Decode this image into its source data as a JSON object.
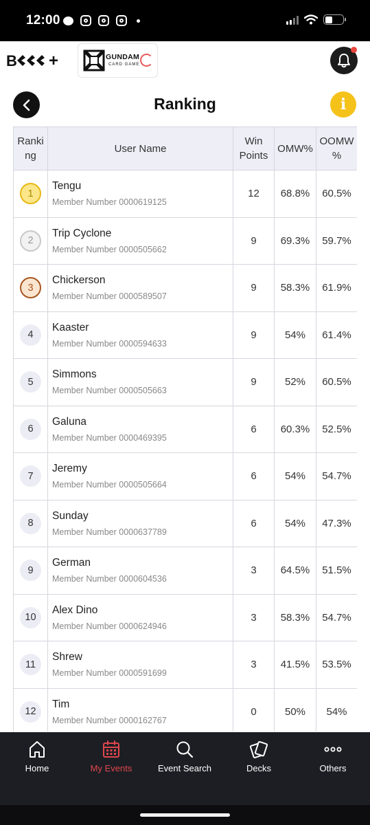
{
  "status_bar": {
    "time": "12:00"
  },
  "header": {
    "brand_logo_text": "B",
    "brand_logo_suffix": "+",
    "game_logo_text": "GUNDAM",
    "game_logo_subtext": "CARD GAME"
  },
  "page": {
    "title": "Ranking",
    "info_label": "i"
  },
  "table": {
    "headers": {
      "rank_line1": "Ranki",
      "rank_line2": "ng",
      "user_name": "User Name",
      "win_line1": "Win",
      "win_line2": "Points",
      "omw": "OMW%",
      "oomw_line1": "OOMW",
      "oomw_line2": "%"
    },
    "rows": [
      {
        "rank": "1",
        "name": "Tengu",
        "member": "Member Number 0000619125",
        "win": "12",
        "omw": "68.8%",
        "oomw": "60.5%"
      },
      {
        "rank": "2",
        "name": "Trip Cyclone",
        "member": "Member Number 0000505662",
        "win": "9",
        "omw": "69.3%",
        "oomw": "59.7%"
      },
      {
        "rank": "3",
        "name": "Chickerson",
        "member": "Member Number 0000589507",
        "win": "9",
        "omw": "58.3%",
        "oomw": "61.9%"
      },
      {
        "rank": "4",
        "name": "Kaaster",
        "member": "Member Number 0000594633",
        "win": "9",
        "omw": "54%",
        "oomw": "61.4%"
      },
      {
        "rank": "5",
        "name": "Simmons",
        "member": "Member Number 0000505663",
        "win": "9",
        "omw": "52%",
        "oomw": "60.5%"
      },
      {
        "rank": "6",
        "name": "Galuna",
        "member": "Member Number 0000469395",
        "win": "6",
        "omw": "60.3%",
        "oomw": "52.5%"
      },
      {
        "rank": "7",
        "name": "Jeremy",
        "member": "Member Number 0000505664",
        "win": "6",
        "omw": "54%",
        "oomw": "54.7%"
      },
      {
        "rank": "8",
        "name": "Sunday",
        "member": "Member Number 0000637789",
        "win": "6",
        "omw": "54%",
        "oomw": "47.3%"
      },
      {
        "rank": "9",
        "name": "German",
        "member": "Member Number 0000604536",
        "win": "3",
        "omw": "64.5%",
        "oomw": "51.5%"
      },
      {
        "rank": "10",
        "name": "Alex Dino",
        "member": "Member Number 0000624946",
        "win": "3",
        "omw": "58.3%",
        "oomw": "54.7%"
      },
      {
        "rank": "11",
        "name": "Shrew",
        "member": "Member Number 0000591699",
        "win": "3",
        "omw": "41.5%",
        "oomw": "53.5%"
      },
      {
        "rank": "12",
        "name": "Tim",
        "member": "Member Number 0000162767",
        "win": "0",
        "omw": "50%",
        "oomw": "54%"
      }
    ]
  },
  "bottom_nav": {
    "items": [
      {
        "label": "Home",
        "icon": "home-icon"
      },
      {
        "label": "My Events",
        "icon": "calendar-icon",
        "active": true
      },
      {
        "label": "Event Search",
        "icon": "search-icon"
      },
      {
        "label": "Decks",
        "icon": "cards-icon"
      },
      {
        "label": "Others",
        "icon": "more-icon"
      }
    ]
  },
  "colors": {
    "accent_active": "#e0474c",
    "info_yellow": "#f5c21a",
    "gold": "#e8b714",
    "silver": "#c8c8c8",
    "bronze": "#a8561f"
  }
}
